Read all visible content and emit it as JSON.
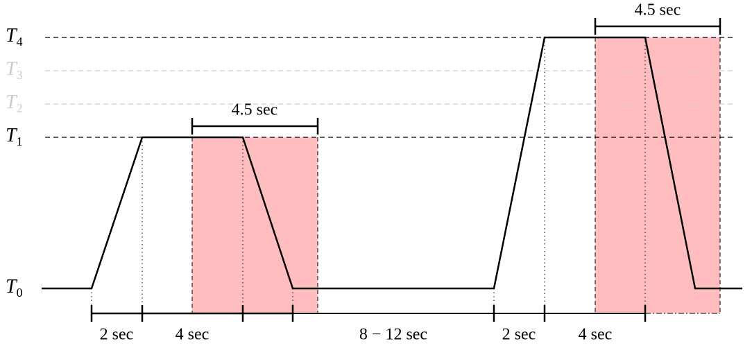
{
  "levels": [
    {
      "main": "T",
      "sub": "0"
    },
    {
      "main": "T",
      "sub": "1"
    },
    {
      "main": "T",
      "sub": "2"
    },
    {
      "main": "T",
      "sub": "3"
    },
    {
      "main": "T",
      "sub": "4"
    }
  ],
  "windows": [
    "4.5 sec",
    "4.5 sec"
  ],
  "durations": [
    "2 sec",
    "4 sec",
    "8 − 12 sec",
    "2 sec",
    "4 sec"
  ]
}
